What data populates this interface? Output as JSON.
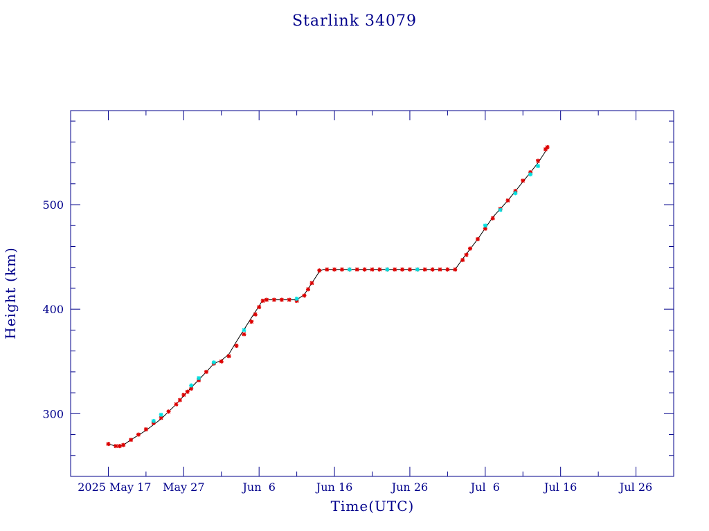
{
  "chart_data": {
    "type": "scatter",
    "title": "Starlink 34079",
    "xlabel": "Time(UTC)",
    "ylabel": "Height (km)",
    "x_is_date": true,
    "xlim": [
      "2025-05-12",
      "2025-07-31"
    ],
    "ylim": [
      240,
      590
    ],
    "x_ticks": [
      {
        "date": "2025-05-17",
        "label": "2025 May 17"
      },
      {
        "date": "2025-05-27",
        "label": "May 27"
      },
      {
        "date": "2025-06-06",
        "label": "Jun  6"
      },
      {
        "date": "2025-06-16",
        "label": "Jun 16"
      },
      {
        "date": "2025-06-26",
        "label": "Jun 26"
      },
      {
        "date": "2025-07-06",
        "label": "Jul  6"
      },
      {
        "date": "2025-07-16",
        "label": "Jul 16"
      },
      {
        "date": "2025-07-26",
        "label": "Jul 26"
      }
    ],
    "y_ticks": [
      300,
      400,
      500
    ],
    "y_tick_labels": [
      "300",
      "400",
      "500"
    ],
    "grid": false,
    "series": [
      {
        "color": "#000000",
        "marker": "line",
        "points": [
          [
            "2025-05-17",
            271
          ],
          [
            "2025-05-18",
            269
          ],
          [
            "2025-05-19",
            270
          ],
          [
            "2025-05-20",
            275
          ],
          [
            "2025-05-22",
            284
          ],
          [
            "2025-05-24",
            295
          ],
          [
            "2025-05-26",
            309
          ],
          [
            "2025-05-28",
            325
          ],
          [
            "2025-05-30",
            340
          ],
          [
            "2025-05-31",
            348
          ],
          [
            "2025-06-01",
            351
          ],
          [
            "2025-06-02",
            357
          ],
          [
            "2025-06-03",
            369
          ],
          [
            "2025-06-05",
            392
          ],
          [
            "2025-06-06",
            403
          ],
          [
            "2025-06-06T12:00",
            409
          ],
          [
            "2025-06-08",
            409
          ],
          [
            "2025-06-10",
            409
          ],
          [
            "2025-06-11",
            409
          ],
          [
            "2025-06-12",
            414
          ],
          [
            "2025-06-13",
            425
          ],
          [
            "2025-06-14",
            436
          ],
          [
            "2025-06-14T12:00",
            438
          ],
          [
            "2025-06-20",
            438
          ],
          [
            "2025-06-26",
            438
          ],
          [
            "2025-07-01",
            438
          ],
          [
            "2025-07-02",
            438
          ],
          [
            "2025-07-03",
            448
          ],
          [
            "2025-07-05",
            467
          ],
          [
            "2025-07-07",
            488
          ],
          [
            "2025-07-09",
            504
          ],
          [
            "2025-07-11",
            522
          ],
          [
            "2025-07-13",
            540
          ],
          [
            "2025-07-14",
            551
          ]
        ]
      },
      {
        "color": "#dd0000",
        "marker": "star",
        "points": [
          [
            "2025-05-17",
            271
          ],
          [
            "2025-05-18",
            269
          ],
          [
            "2025-05-18T12:00",
            269
          ],
          [
            "2025-05-19",
            270
          ],
          [
            "2025-05-20",
            275
          ],
          [
            "2025-05-21",
            280
          ],
          [
            "2025-05-22",
            285
          ],
          [
            "2025-05-23",
            291
          ],
          [
            "2025-05-24",
            296
          ],
          [
            "2025-05-25",
            302
          ],
          [
            "2025-05-26",
            309
          ],
          [
            "2025-05-26T12:00",
            313
          ],
          [
            "2025-05-27",
            318
          ],
          [
            "2025-05-27T12:00",
            321
          ],
          [
            "2025-05-28",
            324
          ],
          [
            "2025-05-29",
            332
          ],
          [
            "2025-05-30",
            340
          ],
          [
            "2025-05-31",
            348
          ],
          [
            "2025-06-01",
            350
          ],
          [
            "2025-06-02",
            355
          ],
          [
            "2025-06-03",
            365
          ],
          [
            "2025-06-04",
            376
          ],
          [
            "2025-06-05",
            388
          ],
          [
            "2025-06-05T12:00",
            395
          ],
          [
            "2025-06-06",
            402
          ],
          [
            "2025-06-06T12:00",
            408
          ],
          [
            "2025-06-07",
            409
          ],
          [
            "2025-06-08",
            409
          ],
          [
            "2025-06-09",
            409
          ],
          [
            "2025-06-10",
            409
          ],
          [
            "2025-06-11",
            408
          ],
          [
            "2025-06-12",
            413
          ],
          [
            "2025-06-12T12:00",
            419
          ],
          [
            "2025-06-13",
            425
          ],
          [
            "2025-06-14",
            437
          ],
          [
            "2025-06-15",
            438
          ],
          [
            "2025-06-16",
            438
          ],
          [
            "2025-06-17",
            438
          ],
          [
            "2025-06-18",
            438
          ],
          [
            "2025-06-19",
            438
          ],
          [
            "2025-06-20",
            438
          ],
          [
            "2025-06-21",
            438
          ],
          [
            "2025-06-22",
            438
          ],
          [
            "2025-06-23",
            438
          ],
          [
            "2025-06-24",
            438
          ],
          [
            "2025-06-25",
            438
          ],
          [
            "2025-06-26",
            438
          ],
          [
            "2025-06-27",
            438
          ],
          [
            "2025-06-28",
            438
          ],
          [
            "2025-06-29",
            438
          ],
          [
            "2025-06-30",
            438
          ],
          [
            "2025-07-01",
            438
          ],
          [
            "2025-07-02",
            438
          ],
          [
            "2025-07-03",
            447
          ],
          [
            "2025-07-03T12:00",
            452
          ],
          [
            "2025-07-04",
            458
          ],
          [
            "2025-07-05",
            467
          ],
          [
            "2025-07-06",
            477
          ],
          [
            "2025-07-07",
            487
          ],
          [
            "2025-07-08",
            496
          ],
          [
            "2025-07-09",
            504
          ],
          [
            "2025-07-10",
            513
          ],
          [
            "2025-07-11",
            523
          ],
          [
            "2025-07-12",
            531
          ],
          [
            "2025-07-13",
            542
          ],
          [
            "2025-07-14",
            553
          ],
          [
            "2025-07-14T06:00",
            555
          ]
        ]
      },
      {
        "color": "#00e0e0",
        "marker": "star",
        "points": [
          [
            "2025-05-23",
            293
          ],
          [
            "2025-05-24",
            299
          ],
          [
            "2025-05-28",
            327
          ],
          [
            "2025-05-29",
            334
          ],
          [
            "2025-05-31",
            349
          ],
          [
            "2025-06-04",
            380
          ],
          [
            "2025-06-11",
            410
          ],
          [
            "2025-06-18",
            438
          ],
          [
            "2025-06-23",
            438
          ],
          [
            "2025-06-27",
            438
          ],
          [
            "2025-07-06",
            480
          ],
          [
            "2025-07-08",
            495
          ],
          [
            "2025-07-10",
            511
          ],
          [
            "2025-07-12",
            529
          ],
          [
            "2025-07-13",
            537
          ]
        ]
      }
    ]
  },
  "colors": {
    "axis": "#00008b",
    "text": "#00008b"
  }
}
